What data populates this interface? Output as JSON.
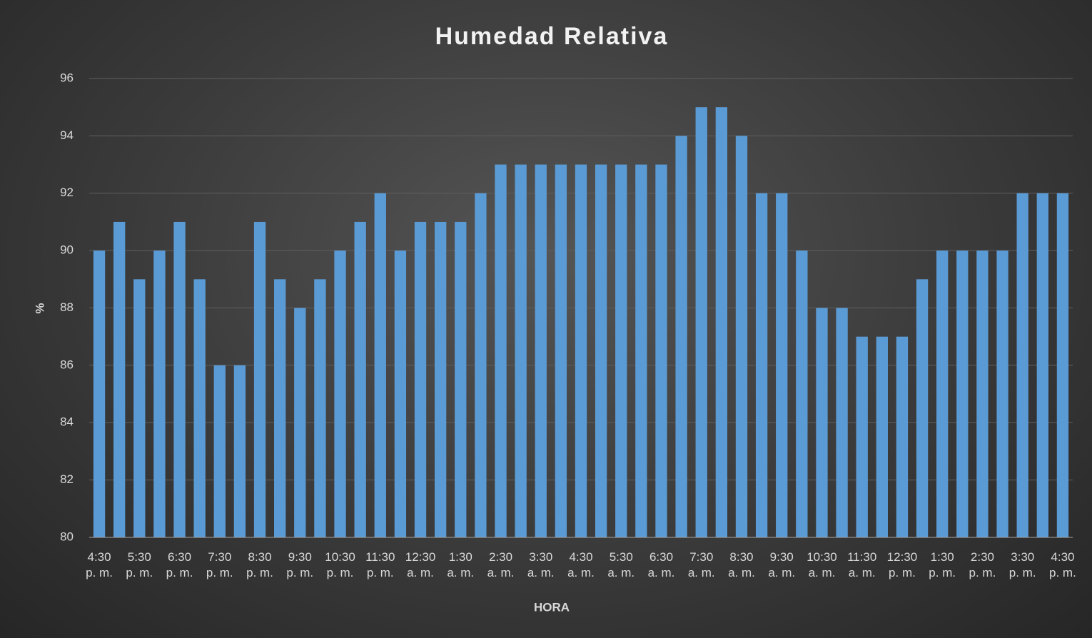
{
  "chart_data": {
    "type": "bar",
    "title": "Humedad Relativa",
    "x_label": "HORA",
    "y_label": "%",
    "categories": [
      "4:30 p. m.",
      null,
      "5:30 p. m.",
      null,
      "6:30 p. m.",
      null,
      "7:30 p. m.",
      null,
      "8:30 p. m.",
      null,
      "9:30 p. m.",
      null,
      "10:30 p. m.",
      null,
      "11:30 p. m.",
      null,
      "12:30 a. m.",
      null,
      "1:30 a. m.",
      null,
      "2:30 a. m.",
      null,
      "3:30 a. m.",
      null,
      "4:30 a. m.",
      null,
      "5:30 a. m.",
      null,
      "6:30 a. m.",
      null,
      "7:30 a. m.",
      null,
      "8:30 a. m.",
      null,
      "9:30 a. m.",
      null,
      "10:30 a. m.",
      null,
      "11:30 a. m.",
      null,
      "12:30 p. m.",
      null,
      "1:30 p. m.",
      null,
      "2:30 p. m.",
      null,
      "3:30 p. m.",
      null,
      "4:30 p. m."
    ],
    "values": [
      90,
      91,
      89,
      90,
      91,
      89,
      86,
      86,
      91,
      89,
      88,
      89,
      90,
      91,
      92,
      90,
      91,
      91,
      91,
      92,
      93,
      93,
      93,
      93,
      93,
      93,
      93,
      93,
      93,
      94,
      95,
      95,
      94,
      92,
      92,
      90,
      88,
      88,
      87,
      87,
      87,
      89,
      90,
      90,
      90,
      90,
      92,
      92,
      92
    ],
    "color": "#5b9bd5",
    "ylim": [
      80,
      96
    ],
    "yticks": [
      80,
      82,
      84,
      86,
      88,
      90,
      92,
      94,
      96
    ],
    "grid": true
  }
}
